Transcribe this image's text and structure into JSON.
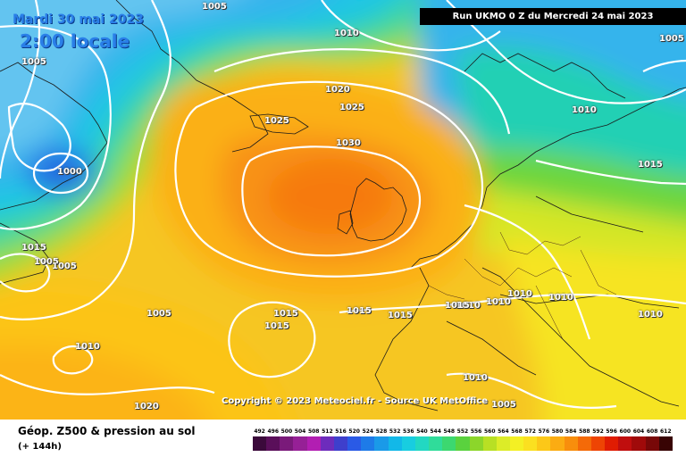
{
  "header": {
    "date": "Mardi 30 mai 2023",
    "time": "2:00 locale",
    "run": "Run UKMO 0 Z du Mercredi 24 mai 2023"
  },
  "copyright": "Copyright © 2023 Meteociel.fr - Source UK MetOffice",
  "footer": {
    "title": "Géop. Z500 & pression au sol",
    "subtitle": "(+ 144h)"
  },
  "isobar_labels": [
    "1005",
    "1010",
    "1005",
    "1005",
    "1000",
    "1020",
    "1025",
    "1025",
    "1030",
    "1010",
    "1015",
    "1015",
    "1005",
    "1005",
    "1015",
    "1015",
    "1015",
    "1015",
    "1015",
    "1010",
    "1010",
    "1010",
    "1010",
    "1010",
    "1010",
    "1010",
    "1020",
    "1005",
    "1005"
  ],
  "scale": {
    "labels": [
      "492",
      "496",
      "500",
      "504",
      "508",
      "512",
      "516",
      "520",
      "524",
      "528",
      "532",
      "536",
      "540",
      "544",
      "548",
      "552",
      "556",
      "560",
      "564",
      "568",
      "572",
      "576",
      "580",
      "584",
      "588",
      "592",
      "596",
      "600",
      "604",
      "608",
      "612"
    ],
    "colors": [
      "#3b0a3b",
      "#5a0f5a",
      "#7a1a7a",
      "#962096",
      "#b21eb2",
      "#6d2cbc",
      "#3e3fcc",
      "#2a5ae6",
      "#1e7be8",
      "#1a9ae8",
      "#12b8e8",
      "#18cde0",
      "#22d8c2",
      "#30dc9a",
      "#3cd870",
      "#5ad23e",
      "#8cd62a",
      "#b8e024",
      "#dcec28",
      "#f4f024",
      "#fbe020",
      "#fcc818",
      "#fbac12",
      "#f88e0c",
      "#f46a08",
      "#ee4404",
      "#e01c02",
      "#c00e0e",
      "#a00a0a",
      "#780808",
      "#380404"
    ]
  }
}
